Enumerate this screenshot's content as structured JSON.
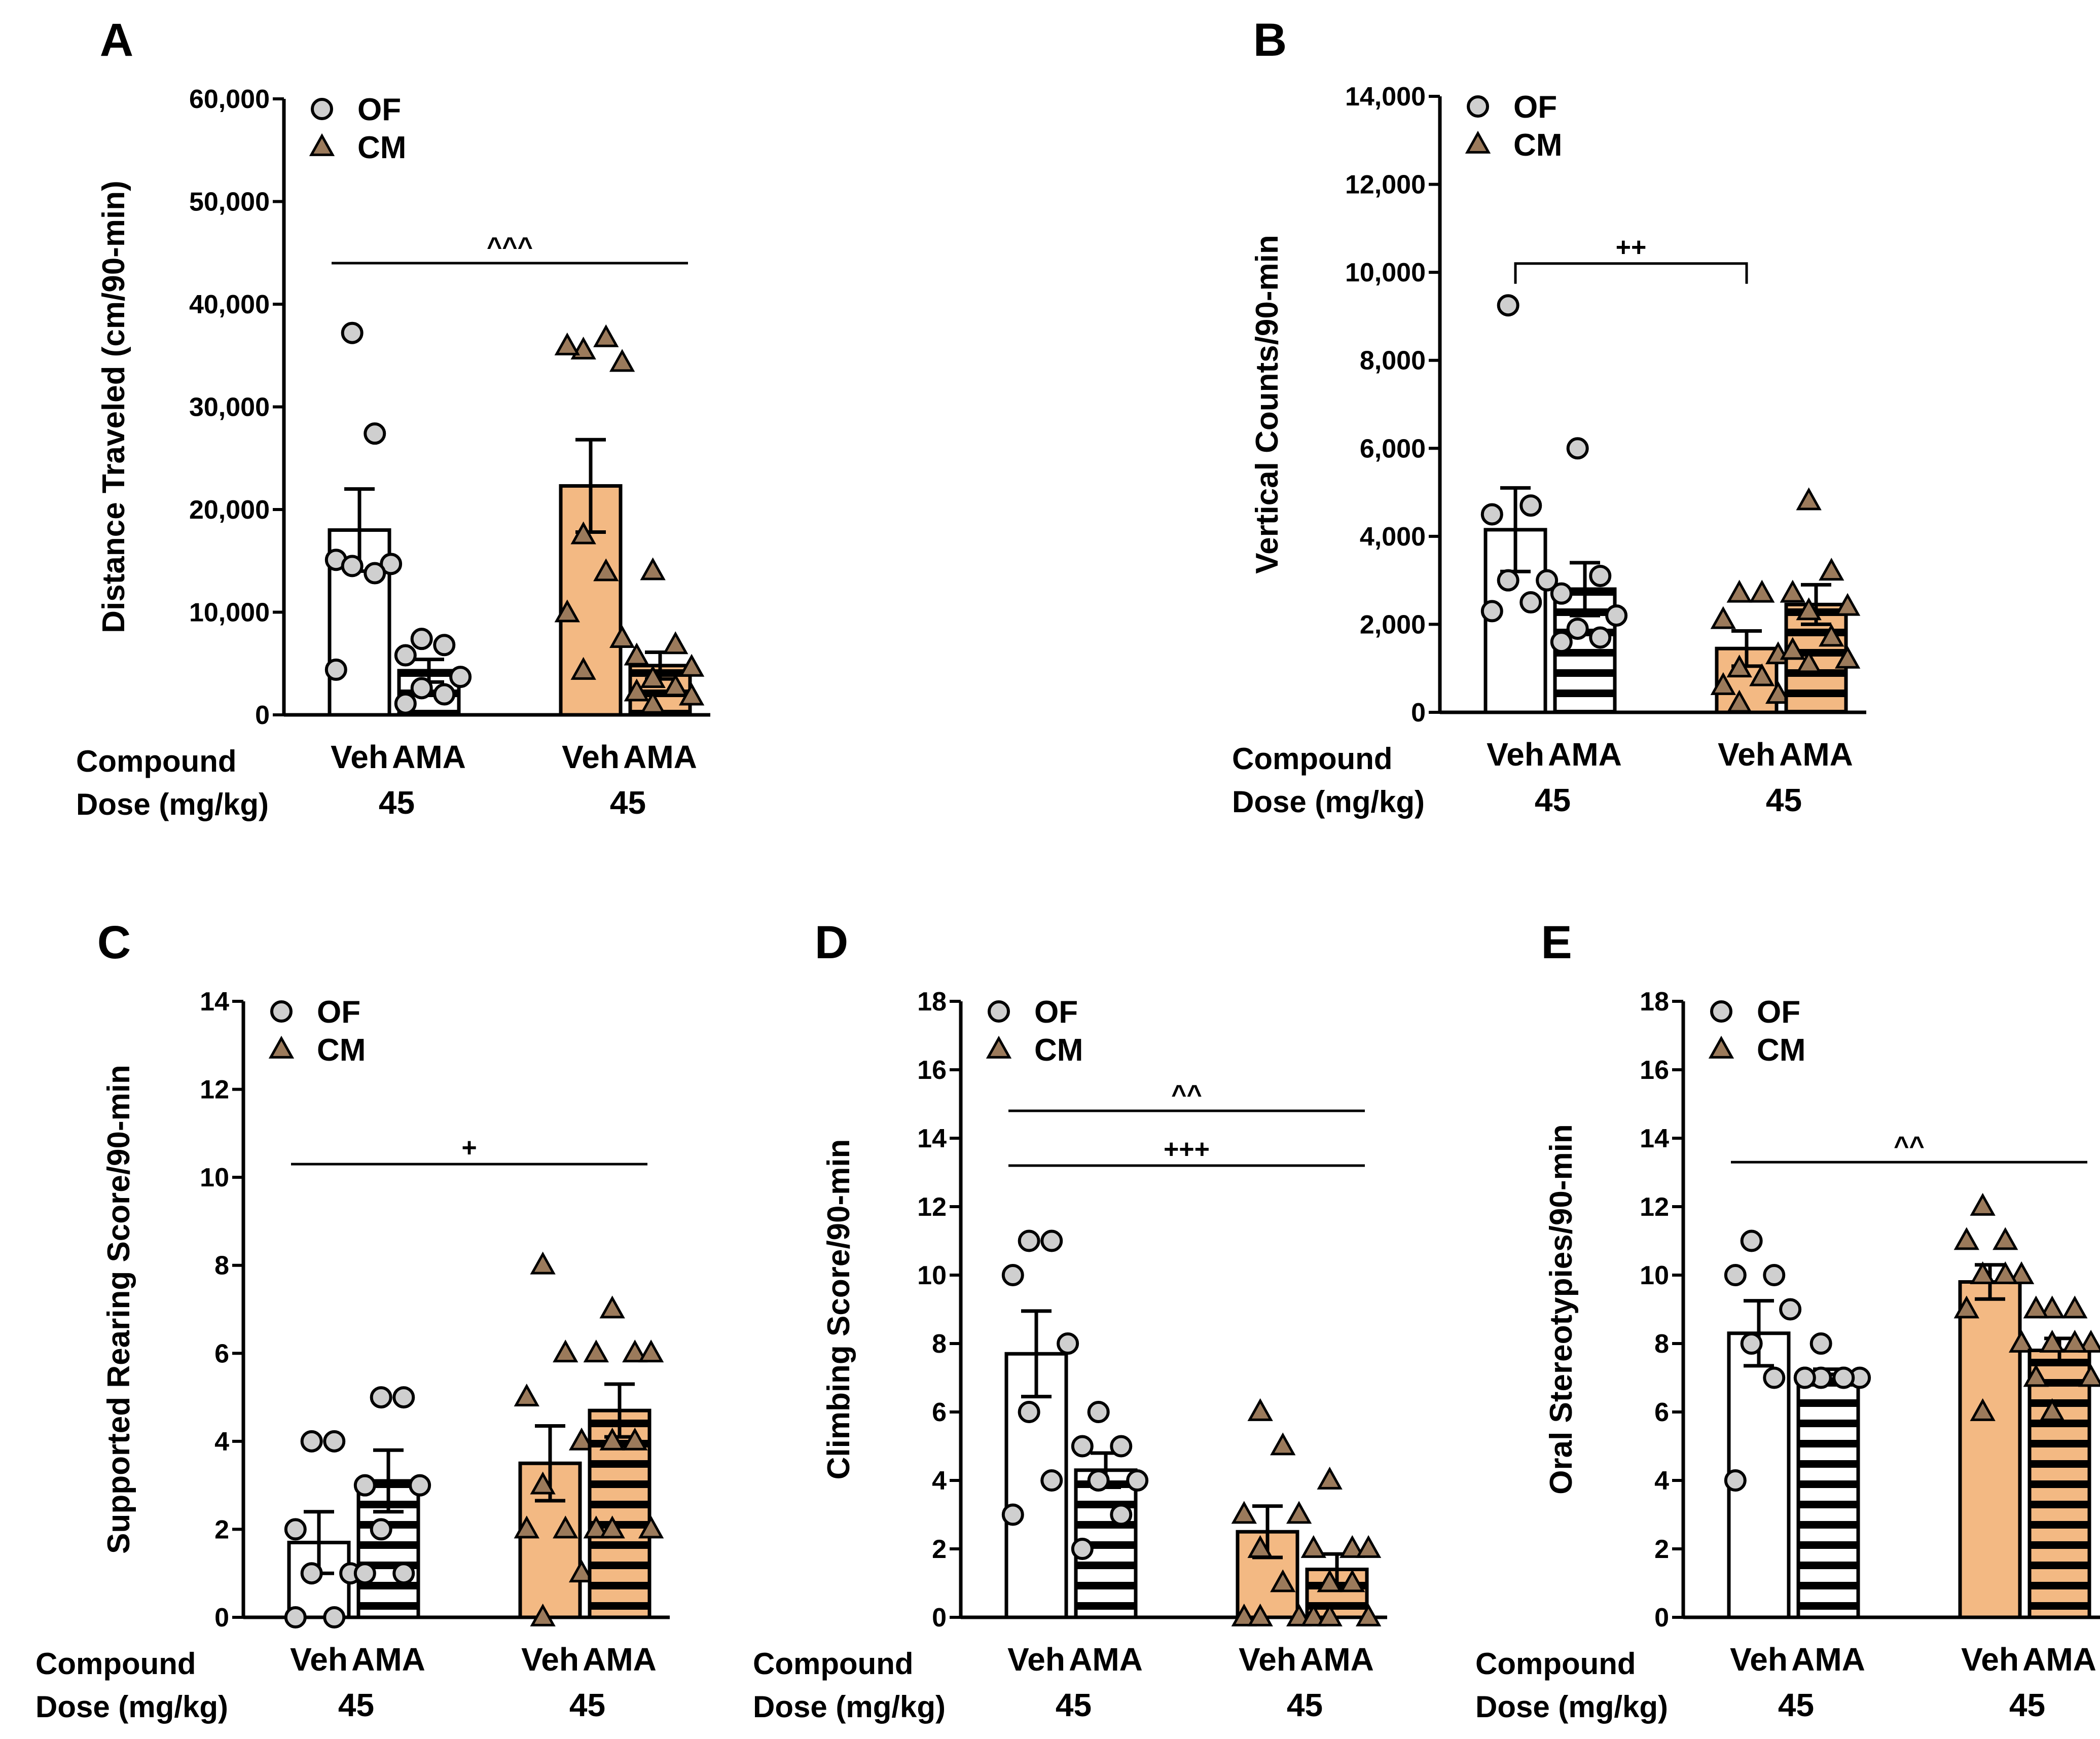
{
  "figure": {
    "colors": {
      "of_fill": "#ffffff",
      "cm_fill": "#f3b983",
      "of_marker": "#cfcfcf",
      "cm_marker": "#9b7a5b",
      "ink": "#000000"
    },
    "legend": {
      "of": "OF",
      "cm": "CM"
    },
    "row_labels": {
      "compound": "Compound",
      "dose": "Dose (mg/kg)"
    },
    "groups": [
      {
        "name": "OF",
        "compounds": [
          "Veh",
          "AMA"
        ],
        "dose": "45"
      },
      {
        "name": "CM",
        "compounds": [
          "Veh",
          "AMA"
        ],
        "dose": "45"
      }
    ]
  },
  "chart_data": [
    {
      "panel": "A",
      "type": "bar",
      "ylabel": "Distance Traveled (cm/90-min)",
      "ylim": [
        0,
        60000
      ],
      "yticks": [
        0,
        10000,
        20000,
        30000,
        40000,
        50000,
        60000
      ],
      "ytick_labels": [
        "0",
        "10,000",
        "20,000",
        "30,000",
        "40,000",
        "50,000",
        "60,000"
      ],
      "categories": [
        "Veh",
        "AMA",
        "Veh",
        "AMA"
      ],
      "doses": [
        "",
        "45",
        "",
        "45"
      ],
      "series": [
        {
          "name": "OF",
          "means": [
            18000,
            4300
          ],
          "sems": [
            4000,
            1100
          ],
          "points": [
            [
              37200,
              27400,
              15100,
              14700,
              14500,
              13800,
              4400
            ],
            [
              7400,
              6800,
              5800,
              3700,
              2600,
              2000,
              1100
            ]
          ]
        },
        {
          "name": "CM",
          "means": [
            22300,
            4800
          ],
          "sems": [
            4500,
            1300
          ],
          "points": [
            [
              35500,
              36700,
              35900,
              34300,
              17500,
              13900,
              9900,
              7400,
              4300
            ],
            [
              14000,
              6800,
              5700,
              4600,
              3500,
              2700,
              2200,
              1800,
              1000
            ]
          ]
        }
      ],
      "sig": [
        {
          "label": "^^^",
          "value": 44000,
          "from": 0,
          "to": 3,
          "style": "line"
        }
      ]
    },
    {
      "panel": "B",
      "type": "bar",
      "ylabel": "Vertical Counts/90-min",
      "ylim": [
        0,
        14000
      ],
      "yticks": [
        0,
        2000,
        4000,
        6000,
        8000,
        10000,
        12000,
        14000
      ],
      "ytick_labels": [
        "0",
        "2,000",
        "4,000",
        "6,000",
        "8,000",
        "10,000",
        "12,000",
        "14,000"
      ],
      "categories": [
        "Veh",
        "AMA",
        "Veh",
        "AMA"
      ],
      "doses": [
        "",
        "45",
        "",
        "45"
      ],
      "series": [
        {
          "name": "OF",
          "means": [
            4150,
            2800
          ],
          "sems": [
            950,
            600
          ],
          "points": [
            [
              9250,
              4700,
              4500,
              3000,
              3000,
              2500,
              2300
            ],
            [
              6000,
              3100,
              2700,
              2200,
              1900,
              1700,
              1600
            ]
          ]
        },
        {
          "name": "CM",
          "means": [
            1450,
            2450
          ],
          "sems": [
            400,
            450
          ],
          "points": [
            [
              2700,
              2700,
              2100,
              1300,
              1000,
              800,
              600,
              400,
              200
            ],
            [
              4800,
              3200,
              2700,
              2400,
              2300,
              1700,
              1400,
              1200,
              1100
            ]
          ]
        }
      ],
      "sig": [
        {
          "label": "++",
          "value": 10200,
          "from": 0,
          "to": 2,
          "style": "bracket"
        }
      ]
    },
    {
      "panel": "C",
      "type": "bar",
      "ylabel": "Supported Rearing Score/90-min",
      "ylim": [
        0,
        14
      ],
      "yticks": [
        0,
        2,
        4,
        6,
        8,
        10,
        12,
        14
      ],
      "ytick_labels": [
        "0",
        "2",
        "4",
        "6",
        "8",
        "10",
        "12",
        "14"
      ],
      "categories": [
        "Veh",
        "AMA",
        "Veh",
        "AMA"
      ],
      "doses": [
        "",
        "45",
        "",
        "45"
      ],
      "series": [
        {
          "name": "OF",
          "means": [
            1.7,
            3.1
          ],
          "sems": [
            0.7,
            0.7
          ],
          "points": [
            [
              4,
              4,
              2,
              1,
              1,
              0,
              0
            ],
            [
              5,
              5,
              3,
              3,
              2,
              1,
              1
            ]
          ]
        },
        {
          "name": "CM",
          "means": [
            3.5,
            4.7
          ],
          "sems": [
            0.85,
            0.6
          ],
          "points": [
            [
              8,
              6,
              5,
              4,
              3,
              2,
              2,
              1,
              0
            ],
            [
              7,
              6,
              6,
              6,
              4,
              4,
              2,
              2,
              2
            ]
          ]
        }
      ],
      "sig": [
        {
          "label": "+",
          "value": 10.3,
          "from": 0,
          "to": 3,
          "style": "line"
        }
      ]
    },
    {
      "panel": "D",
      "type": "bar",
      "ylabel": "Climbing Score/90-min",
      "ylim": [
        0,
        18
      ],
      "yticks": [
        0,
        2,
        4,
        6,
        8,
        10,
        12,
        14,
        16,
        18
      ],
      "ytick_labels": [
        "0",
        "2",
        "4",
        "6",
        "8",
        "10",
        "12",
        "14",
        "16",
        "18"
      ],
      "categories": [
        "Veh",
        "AMA",
        "Veh",
        "AMA"
      ],
      "doses": [
        "",
        "45",
        "",
        "45"
      ],
      "series": [
        {
          "name": "OF",
          "means": [
            7.7,
            4.3
          ],
          "sems": [
            1.25,
            0.5
          ],
          "points": [
            [
              11,
              11,
              10,
              8,
              6,
              4,
              3
            ],
            [
              6,
              5,
              5,
              4,
              4,
              3,
              2
            ]
          ]
        },
        {
          "name": "CM",
          "means": [
            2.5,
            1.4
          ],
          "sems": [
            0.75,
            0.45
          ],
          "points": [
            [
              6,
              5,
              3,
              3,
              2,
              1,
              0,
              0,
              0
            ],
            [
              4,
              2,
              2,
              2,
              1,
              1,
              0,
              0,
              0
            ]
          ]
        }
      ],
      "sig": [
        {
          "label": "^^",
          "value": 14.8,
          "from": 0,
          "to": 3,
          "style": "line"
        },
        {
          "label": "+++",
          "value": 13.2,
          "from": 0,
          "to": 3,
          "style": "line"
        }
      ]
    },
    {
      "panel": "E",
      "type": "bar",
      "ylabel": "Oral Stereotypies/90-min",
      "ylim": [
        0,
        18
      ],
      "yticks": [
        0,
        2,
        4,
        6,
        8,
        10,
        12,
        14,
        16,
        18
      ],
      "ytick_labels": [
        "0",
        "2",
        "4",
        "6",
        "8",
        "10",
        "12",
        "14",
        "16",
        "18"
      ],
      "categories": [
        "Veh",
        "AMA",
        "Veh",
        "AMA"
      ],
      "doses": [
        "",
        "45",
        "",
        "45"
      ],
      "series": [
        {
          "name": "OF",
          "means": [
            8.3,
            7.1
          ],
          "sems": [
            0.95,
            0.15
          ],
          "points": [
            [
              11,
              10,
              10,
              9,
              8,
              7,
              4
            ],
            [
              8,
              7,
              7,
              7,
              7,
              7,
              7
            ]
          ]
        },
        {
          "name": "CM",
          "means": [
            9.8,
            7.8
          ],
          "sems": [
            0.5,
            0.35
          ],
          "points": [
            [
              12,
              11,
              11,
              10,
              10,
              10,
              9,
              8,
              6
            ],
            [
              9,
              9,
              9,
              8,
              8,
              8,
              7,
              7,
              6
            ]
          ]
        }
      ],
      "sig": [
        {
          "label": "^^",
          "value": 13.3,
          "from": 0,
          "to": 3,
          "style": "line"
        }
      ]
    }
  ]
}
